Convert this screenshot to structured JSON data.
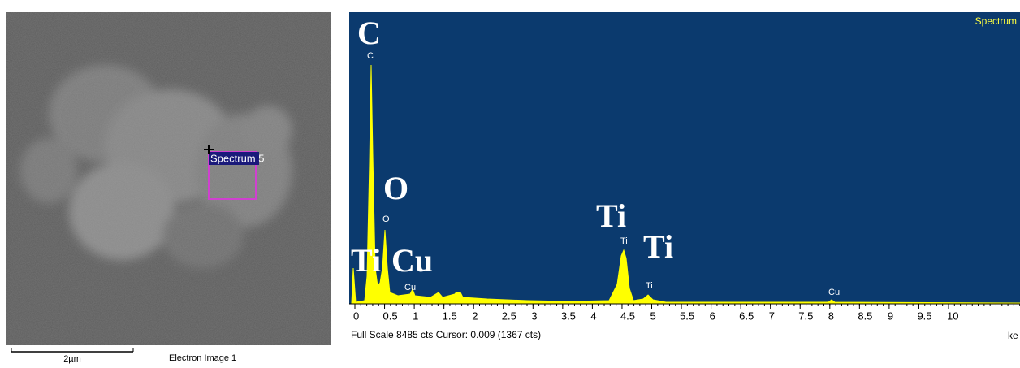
{
  "sem": {
    "box_label": "Spectrum 5",
    "scale": "2µm",
    "caption": "Electron Image 1"
  },
  "spectrum": {
    "title": "Spectrum",
    "peak_labels": [
      {
        "text": "C"
      },
      {
        "text": "O"
      },
      {
        "text": "Ti"
      },
      {
        "text": "Ti"
      },
      {
        "text": "Ti"
      },
      {
        "text": "Cu"
      }
    ],
    "line_labels": [
      {
        "text": "C"
      },
      {
        "text": "O"
      },
      {
        "text": "Ti"
      },
      {
        "text": "Ti"
      },
      {
        "text": "Cu"
      },
      {
        "text": "Cu"
      }
    ],
    "ticks": [
      "0",
      "0.5",
      "1",
      "1.5",
      "2",
      "2.5",
      "3",
      "3.5",
      "4",
      "4.5",
      "5",
      "5.5",
      "6",
      "6.5",
      "7",
      "7.5",
      "8",
      "8.5",
      "9",
      "9.5",
      "10"
    ],
    "footer": "Full Scale 8485 cts Cursor: 0.009  (1367 cts)",
    "unit": "ke"
  }
}
